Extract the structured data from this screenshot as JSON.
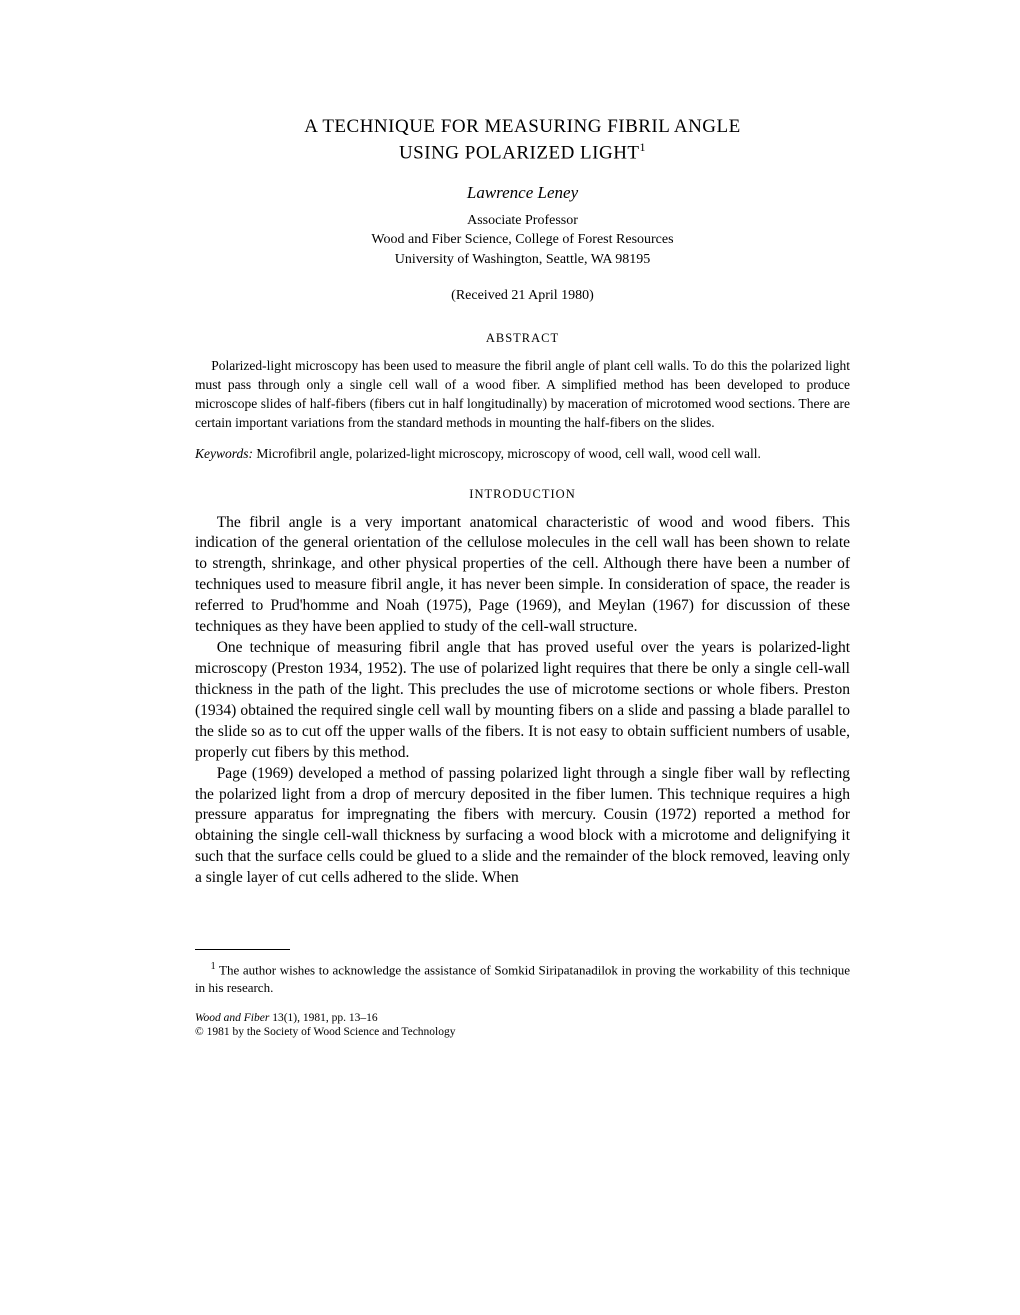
{
  "title": {
    "line1": "A TECHNIQUE FOR MEASURING FIBRIL ANGLE",
    "line2": "USING POLARIZED LIGHT",
    "footnote_marker": "1"
  },
  "author": "Lawrence Leney",
  "affiliation": {
    "line1": "Associate Professor",
    "line2": "Wood and Fiber Science, College of Forest Resources",
    "line3": "University of Washington, Seattle, WA 98195"
  },
  "received": "(Received 21 April 1980)",
  "abstract": {
    "heading": "ABSTRACT",
    "text": "Polarized-light microscopy has been used to measure the fibril angle of plant cell walls. To do this the polarized light must pass through only a single cell wall of a wood fiber. A simplified method has been developed to produce microscope slides of half-fibers (fibers cut in half longitudinally) by maceration of microtomed wood sections. There are certain important variations from the standard methods in mounting the half-fibers on the slides."
  },
  "keywords": {
    "label": "Keywords:",
    "text": "   Microfibril angle, polarized-light microscopy, microscopy of wood, cell wall, wood cell wall."
  },
  "introduction": {
    "heading": "INTRODUCTION",
    "p1": "The fibril angle is a very important anatomical characteristic of wood and wood fibers. This indication of the general orientation of the cellulose molecules in the cell wall has been shown to relate to strength, shrinkage, and other physical properties of the cell. Although there have been a number of techniques used to measure fibril angle, it has never been simple. In consideration of space, the reader is referred to Prud'homme and Noah (1975), Page (1969), and Meylan (1967) for discussion of these techniques as they have been applied to study of the cell-wall structure.",
    "p2": "One technique of measuring fibril angle that has proved useful over the years is polarized-light microscopy (Preston 1934, 1952). The use of polarized light requires that there be only a single cell-wall thickness in the path of the light. This precludes the use of microtome sections or whole fibers. Preston (1934) obtained the required single cell wall by mounting fibers on a slide and passing a blade parallel to the slide so as to cut off the upper walls of the fibers. It is not easy to obtain sufficient numbers of usable, properly cut fibers by this method.",
    "p3": "Page (1969) developed a method of passing polarized light through a single fiber wall by reflecting the polarized light from a drop of mercury deposited in the fiber lumen. This technique requires a high pressure apparatus for impregnating the fibers with mercury. Cousin (1972) reported a method for obtaining the single cell-wall thickness by surfacing a wood block with a microtome and delignifying it such that the surface cells could be glued to a slide and the remainder of the block removed, leaving only a single layer of cut cells adhered to the slide. When"
  },
  "footnote": {
    "marker": "1",
    "text": " The author wishes to acknowledge the assistance of Somkid Siripatanadilok in proving the workability of this technique in his research."
  },
  "journal": {
    "line1_name": "Wood and Fiber",
    "line1_rest": "   13(1), 1981, pp. 13–16",
    "line2": "© 1981 by the Society of Wood Science and Technology"
  }
}
